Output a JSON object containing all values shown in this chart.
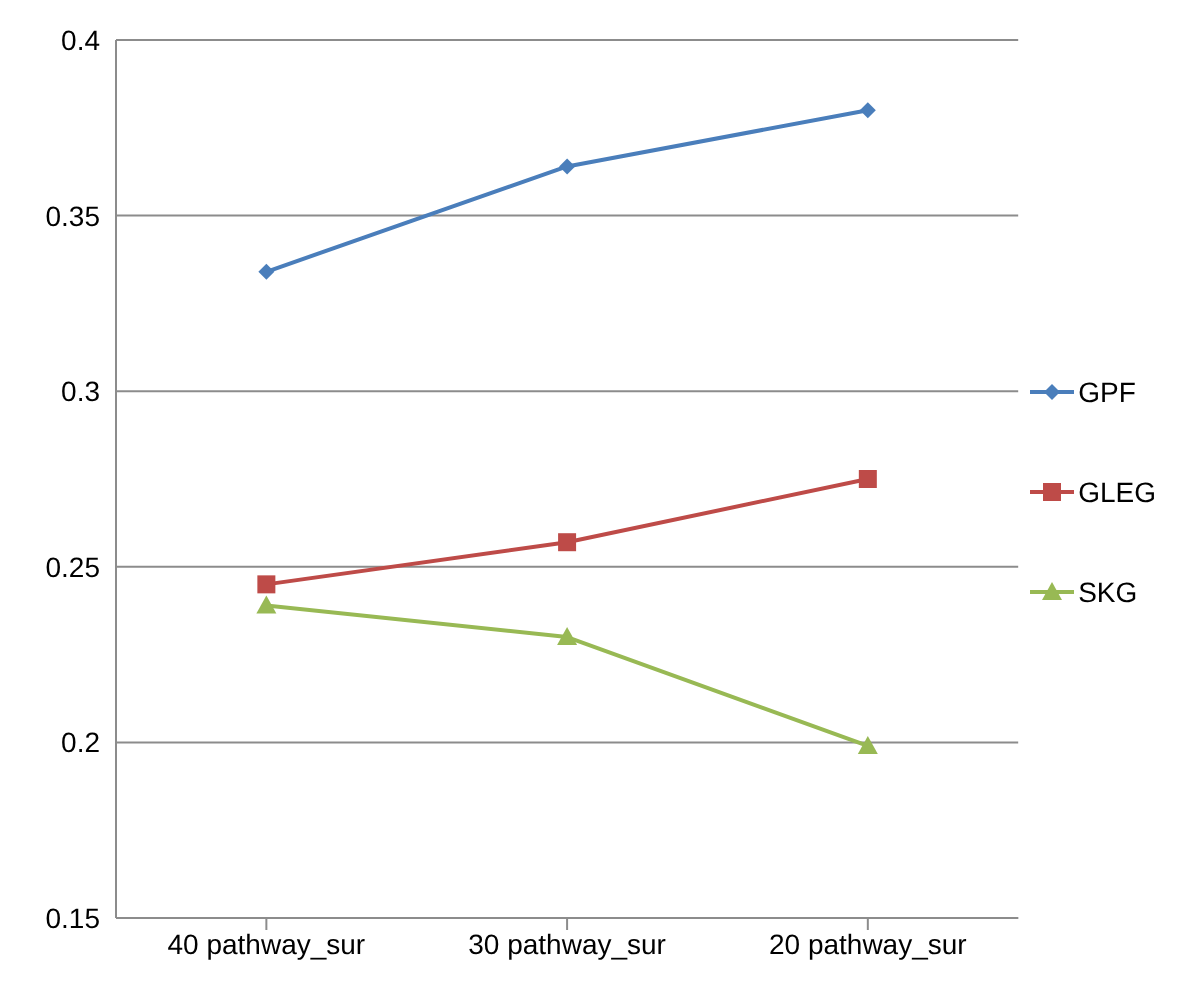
{
  "chart_data": {
    "type": "line",
    "categories": [
      "40 pathway_sur",
      "30 pathway_sur",
      "20 pathway_sur"
    ],
    "series": [
      {
        "name": "GPF",
        "color": "#4a7ebb",
        "marker": "diamond",
        "values": [
          0.334,
          0.364,
          0.38
        ]
      },
      {
        "name": "GLEG",
        "color": "#be4b48",
        "marker": "square",
        "values": [
          0.245,
          0.257,
          0.275
        ]
      },
      {
        "name": "SKG",
        "color": "#98b954",
        "marker": "triangle",
        "values": [
          0.239,
          0.23,
          0.199
        ]
      }
    ],
    "ylim": [
      0.15,
      0.4
    ],
    "yticks": [
      0.15,
      0.2,
      0.25,
      0.3,
      0.35,
      0.4
    ],
    "grid": "y",
    "legend": "right"
  }
}
